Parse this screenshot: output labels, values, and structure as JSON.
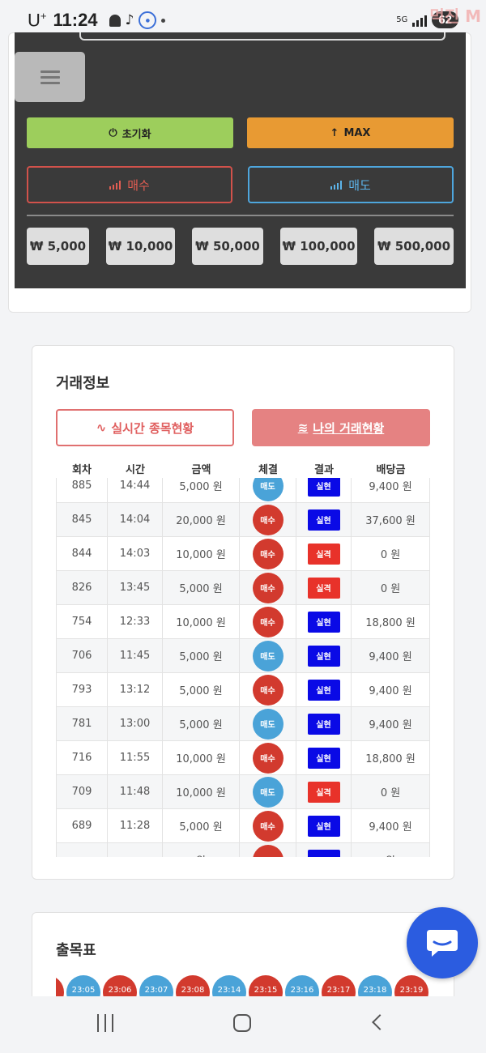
{
  "status_bar": {
    "carrier": "U",
    "carrier_sup": "+",
    "time": "11:24",
    "network": "5G",
    "battery": "62",
    "watermark": "먹진 M"
  },
  "controls": {
    "reset_label": "초기화",
    "max_label": "MAX",
    "buy_label": "매수",
    "sell_label": "매도",
    "amounts": [
      "₩ 5,000",
      "₩ 10,000",
      "₩ 50,000",
      "₩ 100,000",
      "₩ 500,000"
    ]
  },
  "trade_info": {
    "title": "거래정보",
    "tab_live": "실시간 종목현황",
    "tab_mine": "나의 거래현황",
    "headers": [
      "회차",
      "시간",
      "금액",
      "체결",
      "결과",
      "배당금"
    ],
    "rows": [
      {
        "round": "885",
        "time": "14:44",
        "amount": "5,000 원",
        "side": "매도",
        "side_type": "sell",
        "result": "실현",
        "result_type": "win",
        "payout": "9,400 원"
      },
      {
        "round": "845",
        "time": "14:04",
        "amount": "20,000 원",
        "side": "매수",
        "side_type": "buy",
        "result": "실현",
        "result_type": "win",
        "payout": "37,600 원"
      },
      {
        "round": "844",
        "time": "14:03",
        "amount": "10,000 원",
        "side": "매수",
        "side_type": "buy",
        "result": "실격",
        "result_type": "lose",
        "payout": "0 원"
      },
      {
        "round": "826",
        "time": "13:45",
        "amount": "5,000 원",
        "side": "매수",
        "side_type": "buy",
        "result": "실격",
        "result_type": "lose",
        "payout": "0 원"
      },
      {
        "round": "754",
        "time": "12:33",
        "amount": "10,000 원",
        "side": "매수",
        "side_type": "buy",
        "result": "실현",
        "result_type": "win",
        "payout": "18,800 원"
      },
      {
        "round": "706",
        "time": "11:45",
        "amount": "5,000 원",
        "side": "매도",
        "side_type": "sell",
        "result": "실현",
        "result_type": "win",
        "payout": "9,400 원"
      },
      {
        "round": "793",
        "time": "13:12",
        "amount": "5,000 원",
        "side": "매수",
        "side_type": "buy",
        "result": "실현",
        "result_type": "win",
        "payout": "9,400 원"
      },
      {
        "round": "781",
        "time": "13:00",
        "amount": "5,000 원",
        "side": "매도",
        "side_type": "sell",
        "result": "실현",
        "result_type": "win",
        "payout": "9,400 원"
      },
      {
        "round": "716",
        "time": "11:55",
        "amount": "10,000 원",
        "side": "매수",
        "side_type": "buy",
        "result": "실현",
        "result_type": "win",
        "payout": "18,800 원"
      },
      {
        "round": "709",
        "time": "11:48",
        "amount": "10,000 원",
        "side": "매도",
        "side_type": "sell",
        "result": "실격",
        "result_type": "lose",
        "payout": "0 원"
      },
      {
        "round": "689",
        "time": "11:28",
        "amount": "5,000 원",
        "side": "매수",
        "side_type": "buy",
        "result": "실현",
        "result_type": "win",
        "payout": "9,400 원"
      },
      {
        "round": "",
        "time": "",
        "amount": "원",
        "side": "",
        "side_type": "buy",
        "result": "",
        "result_type": "win",
        "payout": "원"
      }
    ]
  },
  "draw_table": {
    "title": "출목표",
    "balls": [
      {
        "label": "",
        "type": "buy"
      },
      {
        "label": "23:05",
        "type": "sell"
      },
      {
        "label": "23:06",
        "type": "buy"
      },
      {
        "label": "23:07",
        "type": "sell"
      },
      {
        "label": "23:08",
        "type": "buy"
      },
      {
        "label": "23:14",
        "type": "sell"
      },
      {
        "label": "23:15",
        "type": "buy"
      },
      {
        "label": "23:16",
        "type": "sell"
      },
      {
        "label": "23:17",
        "type": "buy"
      },
      {
        "label": "23:18",
        "type": "sell"
      },
      {
        "label": "23:19",
        "type": "buy"
      }
    ]
  },
  "colors": {
    "buy": "#d23a2e",
    "sell": "#4aa3d8",
    "win": "#0a0ae6",
    "lose": "#e8322a",
    "reset_bg": "#9dce5c",
    "max_bg": "#e89a33",
    "chat": "#2b5ce0"
  }
}
